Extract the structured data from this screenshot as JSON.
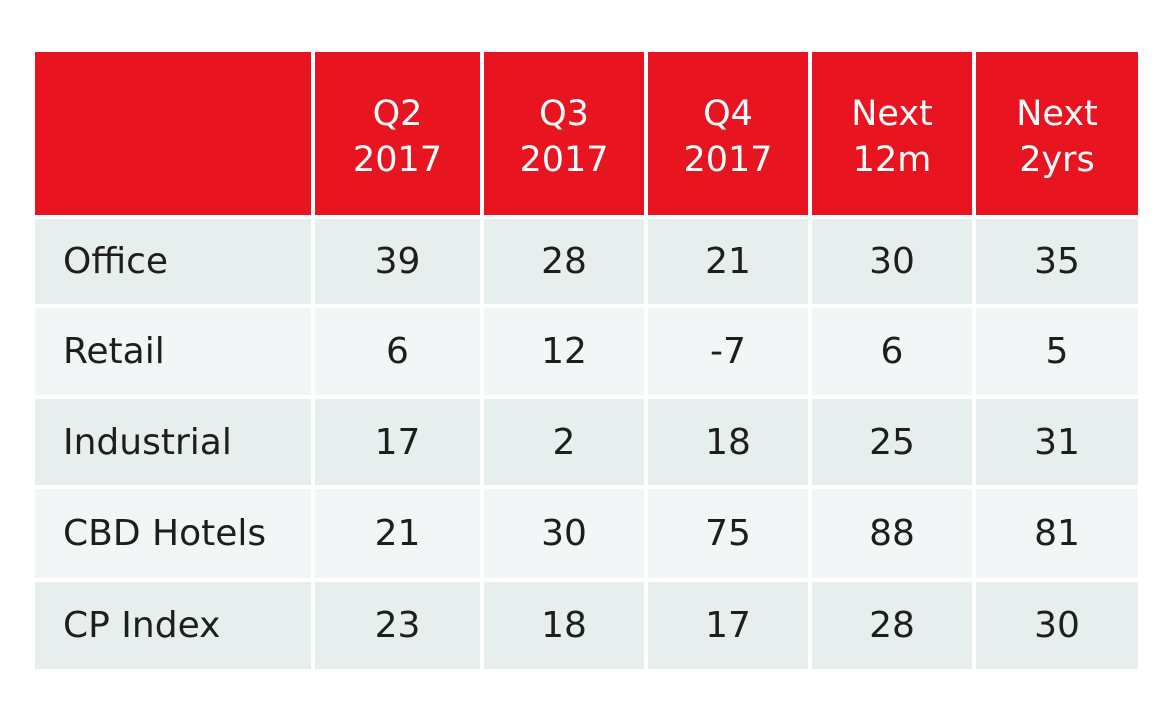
{
  "chart_data": {
    "type": "table",
    "columns": [
      {
        "line1": "Q2",
        "line2": "2017"
      },
      {
        "line1": "Q3",
        "line2": "2017"
      },
      {
        "line1": "Q4",
        "line2": "2017"
      },
      {
        "line1": "Next",
        "line2": "12m"
      },
      {
        "line1": "Next",
        "line2": "2yrs"
      }
    ],
    "rows": [
      {
        "label": "Office",
        "values": [
          "39",
          "28",
          "21",
          "30",
          "35"
        ]
      },
      {
        "label": "Retail",
        "values": [
          "6",
          "12",
          "-7",
          "6",
          "5"
        ]
      },
      {
        "label": "Industrial",
        "values": [
          "17",
          "2",
          "18",
          "25",
          "31"
        ]
      },
      {
        "label": "CBD Hotels",
        "values": [
          "21",
          "30",
          "75",
          "88",
          "81"
        ]
      },
      {
        "label": "CP Index",
        "values": [
          "23",
          "18",
          "17",
          "28",
          "30"
        ]
      }
    ]
  },
  "colors": {
    "header_bg": "#e8141f",
    "header_text": "#ffffff",
    "row_bg_a": "#e6eeee",
    "row_bg_b": "#f2f6f7",
    "body_text": "#1e1e1e"
  }
}
